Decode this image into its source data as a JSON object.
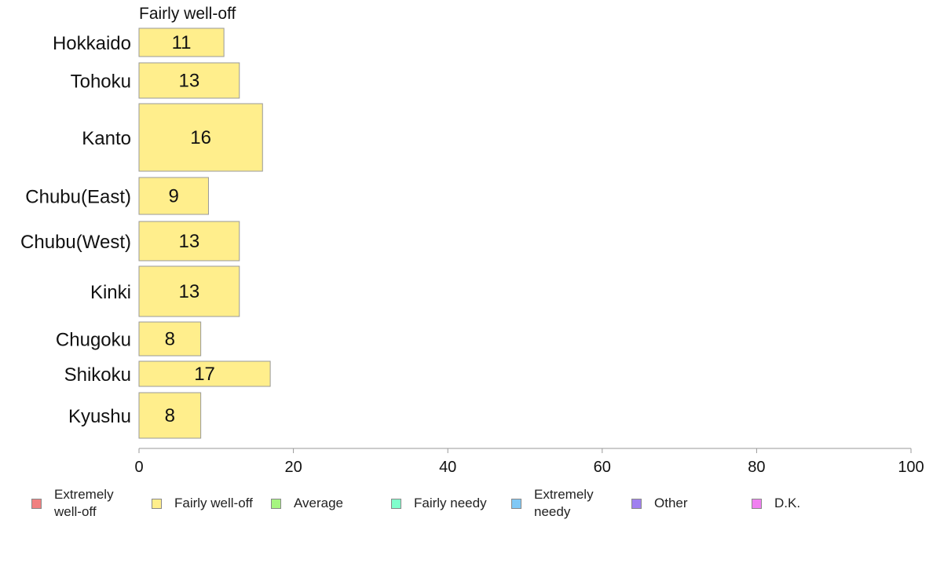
{
  "chart_data": {
    "type": "bar",
    "orientation": "horizontal",
    "series_label": "Fairly well-off",
    "categories": [
      "Hokkaido",
      "Tohoku",
      "Kanto",
      "Chubu(East)",
      "Chubu(West)",
      "Kinki",
      "Chugoku",
      "Shikoku",
      "Kyushu"
    ],
    "values": [
      11,
      13,
      16,
      9,
      13,
      13,
      8,
      17,
      8
    ],
    "xlim": [
      0,
      100
    ],
    "xticks": [
      0,
      20,
      40,
      60,
      80,
      100
    ],
    "grid": false,
    "bar_color": "#FFEE8C",
    "bar_border": "#999999",
    "legend": [
      {
        "label": "Extremely well-off",
        "color": "#F08080"
      },
      {
        "label": "Fairly well-off",
        "color": "#FFEE8C"
      },
      {
        "label": "Average",
        "color": "#A6F580"
      },
      {
        "label": "Fairly needy",
        "color": "#80FFCC"
      },
      {
        "label": "Extremely needy",
        "color": "#80C8F5"
      },
      {
        "label": "Other",
        "color": "#A080F0"
      },
      {
        "label": "D.K.",
        "color": "#F080F0"
      }
    ]
  }
}
